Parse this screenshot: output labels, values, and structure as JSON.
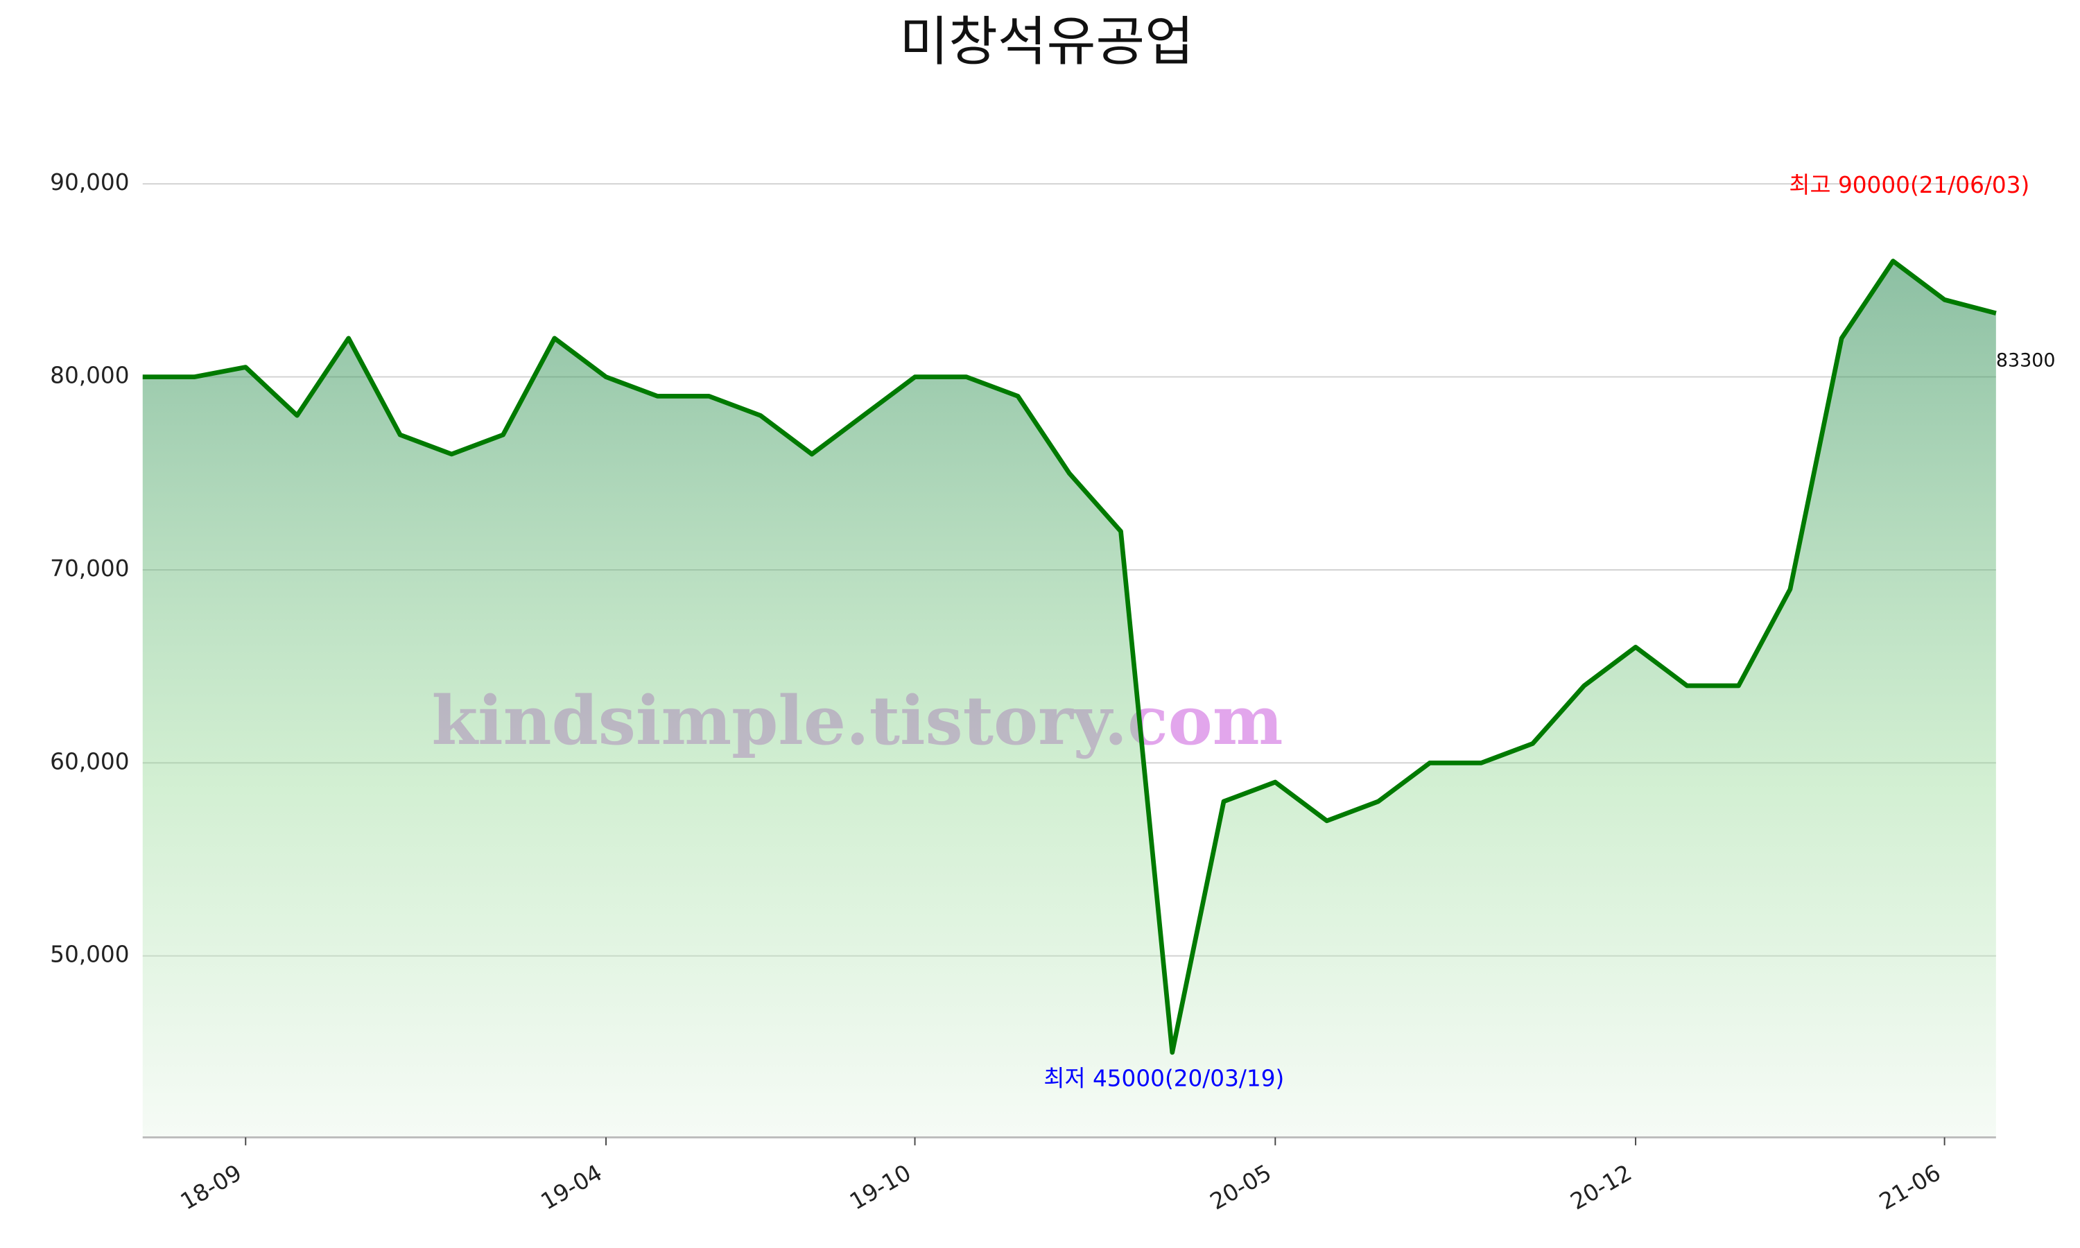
{
  "chart_data": {
    "type": "line",
    "title": "미창석유공업",
    "watermark": "kindsimple.tistory.com",
    "categories": [
      null,
      null,
      "18-09",
      null,
      null,
      null,
      null,
      null,
      null,
      "19-04",
      null,
      null,
      null,
      null,
      null,
      "19-10",
      null,
      null,
      null,
      null,
      null,
      null,
      "20-05",
      null,
      null,
      null,
      null,
      null,
      null,
      "20-12",
      null,
      null,
      null,
      null,
      null,
      "21-06",
      null
    ],
    "values": [
      80000,
      80000,
      80500,
      78000,
      82000,
      77000,
      76000,
      77000,
      82000,
      80000,
      79000,
      79000,
      78000,
      76000,
      78000,
      80000,
      80000,
      79000,
      75000,
      72000,
      45000,
      58000,
      59000,
      57000,
      58000,
      60000,
      60000,
      61000,
      64000,
      66000,
      64000,
      64000,
      69000,
      82000,
      86000,
      84000,
      83300
    ],
    "color": "#007a00",
    "ylim": [
      40600,
      94000
    ],
    "yticks": [
      {
        "value": 50000,
        "label": "50,000"
      },
      {
        "value": 60000,
        "label": "60,000"
      },
      {
        "value": 70000,
        "label": "70,000"
      },
      {
        "value": 80000,
        "label": "80,000"
      },
      {
        "value": 90000,
        "label": "90,000"
      }
    ],
    "grid": true,
    "annotations": {
      "high": "최고 90000(21/06/03)",
      "low": "최저 45000(20/03/19)"
    },
    "annotation_colors": {
      "high": "#ff0000",
      "low": "#0000ff"
    }
  }
}
